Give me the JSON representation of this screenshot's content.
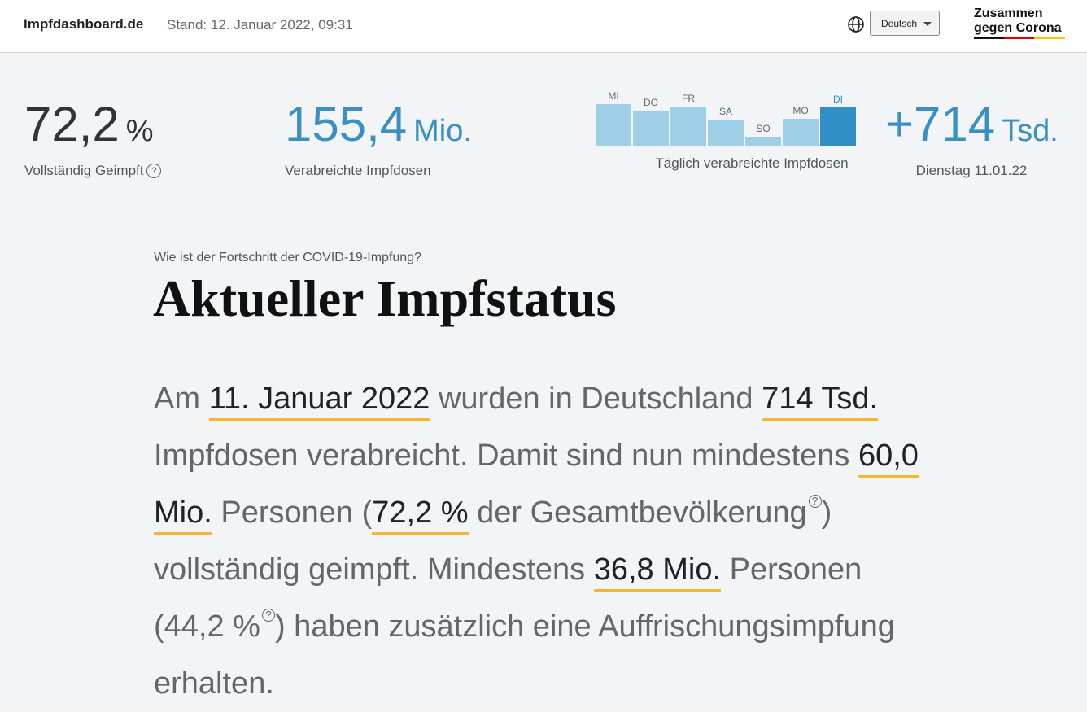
{
  "header": {
    "brand": "Impfdashboard.de",
    "stand": "Stand: 12. Januar 2022, 09:31",
    "language": "Deutsch",
    "logo": [
      "Zusammen",
      "gegen Corona"
    ]
  },
  "stats": [
    {
      "value": "72,2",
      "unit": "%",
      "label": "Vollständig Geimpft",
      "help": "?"
    },
    {
      "value": "155,4",
      "unit": "Mio.",
      "label": "Verabreichte Impfdosen"
    }
  ],
  "daily_chart": {
    "type": "bar",
    "caption": "Täglich verabreichte Impfdosen",
    "categories": [
      "MI",
      "DO",
      "FR",
      "SA",
      "SO",
      "MO",
      "DI"
    ],
    "values": [
      773,
      655,
      729,
      491,
      179,
      506,
      714
    ],
    "colors": [
      "#9fcfe6",
      "#9fcfe6",
      "#9fcfe6",
      "#9fcfe6",
      "#9fcfe6",
      "#9fcfe6",
      "#2f8fc6"
    ]
  },
  "latest": {
    "value": "+714",
    "unit": "Tsd.",
    "label": "Dienstag 11.01.22"
  },
  "section": {
    "kicker": "Wie ist der Fortschritt der COVID-19-Impfung?",
    "title": "Aktueller Impfstatus",
    "paragraph": [
      {
        "text": "Am "
      },
      {
        "em": "11. Januar 2022"
      },
      {
        "text": " wurden in Deutschland "
      },
      {
        "em": "714 Tsd."
      },
      {
        "text": " Impfdosen verabreicht. Damit sind nun mindestens "
      },
      {
        "em": "60,0 Mio."
      },
      {
        "text": " Personen ("
      },
      {
        "em": "72,2 %"
      },
      {
        "text": " der Gesamtbevölkerung"
      },
      {
        "help": "?"
      },
      {
        "text": ") vollständig geimpft. Mindestens "
      },
      {
        "em": "36,8 Mio."
      },
      {
        "text": " Personen (44,2 %"
      },
      {
        "help": "?"
      },
      {
        "text": ") haben zusätzlich eine Auffrischungsimpfung erhalten."
      }
    ]
  }
}
